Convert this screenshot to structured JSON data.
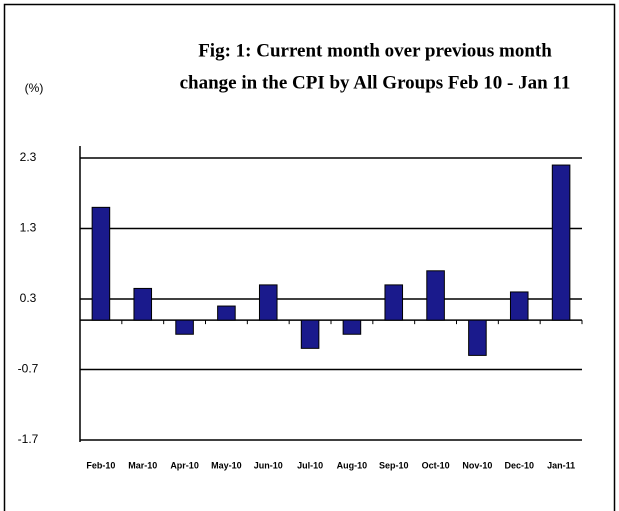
{
  "chart_data": {
    "type": "bar",
    "title": [
      "Fig: 1: Current month over previous month",
      "change in the CPI by All Groups Feb 10 - Jan 11"
    ],
    "y_label": "(%)",
    "categories": [
      "Feb-10",
      "Mar-10",
      "Apr-10",
      "May-10",
      "Jun-10",
      "Jul-10",
      "Aug-10",
      "Sep-10",
      "Oct-10",
      "Nov-10",
      "Dec-10",
      "Jan-11"
    ],
    "values": [
      1.6,
      0.45,
      -0.2,
      0.2,
      0.5,
      -0.4,
      -0.2,
      0.5,
      0.7,
      -0.5,
      0.4,
      2.2
    ],
    "color": "#1a1a8c",
    "ylim": [
      -1.7,
      2.3
    ],
    "yticks": [
      2.3,
      1.3,
      0.3,
      -0.7,
      -1.7
    ],
    "grid": true
  }
}
